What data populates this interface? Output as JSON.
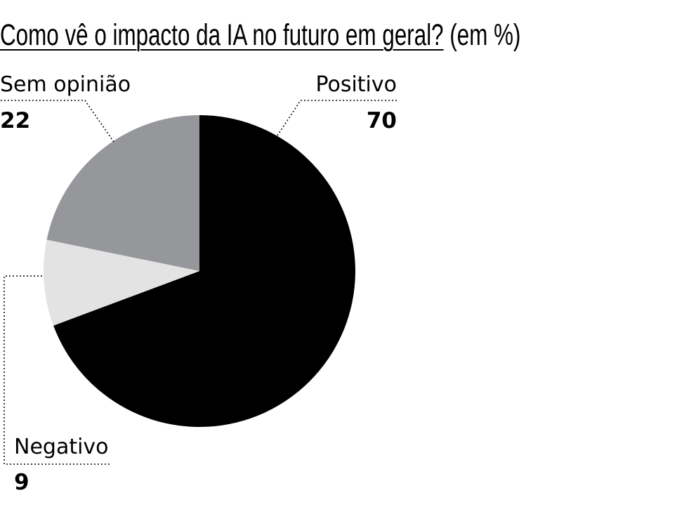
{
  "title": "Como vê o impacto da IA no futuro em geral?",
  "title_unit": "(em %)",
  "chart_data": {
    "type": "pie",
    "title": "Como vê o impacto da IA no futuro em geral? (em %)",
    "unit": "%",
    "start_angle_deg": 0,
    "direction": "clockwise",
    "slices": [
      {
        "key": "positivo",
        "label": "Positivo",
        "value": 70,
        "value_label": "70",
        "color": "#000000"
      },
      {
        "key": "negativo",
        "label": "Negativo",
        "value": 9,
        "value_label": "9",
        "color": "#e3e3e4"
      },
      {
        "key": "sem-opiniao",
        "label": "Sem opinião",
        "value": 22,
        "value_label": "22",
        "color": "#96979a"
      }
    ]
  }
}
